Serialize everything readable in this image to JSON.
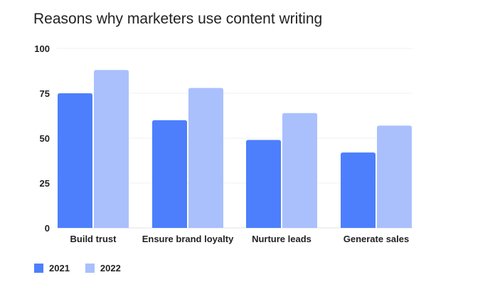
{
  "chart_data": {
    "type": "bar",
    "title": "Reasons why marketers use content writing",
    "xlabel": "",
    "ylabel": "",
    "categories": [
      "Build trust",
      "Ensure brand loyalty",
      "Nurture leads",
      "Generate sales"
    ],
    "series": [
      {
        "name": "2021",
        "color": "#4d7ffc",
        "values": [
          75,
          60,
          49,
          42
        ]
      },
      {
        "name": "2022",
        "color": "#aac0fd",
        "values": [
          88,
          78,
          64,
          57
        ]
      }
    ],
    "ylim": [
      0,
      100
    ],
    "yticks": [
      0,
      25,
      50,
      75,
      100
    ],
    "grid": true,
    "legend_position": "bottom-left"
  }
}
